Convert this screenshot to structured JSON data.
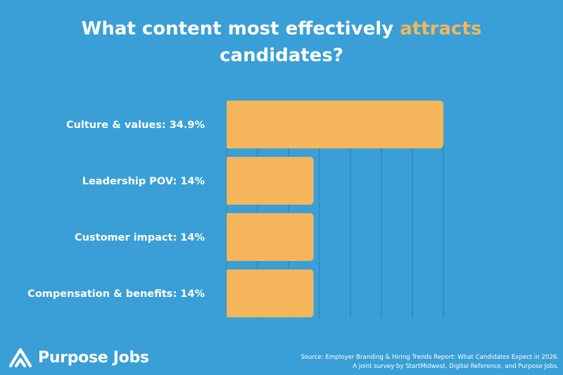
{
  "chart_data": {
    "type": "bar",
    "orientation": "horizontal",
    "title_prefix": "What content most effectively ",
    "title_highlight": "attracts",
    "title_suffix": "candidates?",
    "categories": [
      "Culture & values: 34.9%",
      "Leadership POV: 14%",
      "Customer impact: 14%",
      "Compensation & benefits: 14%"
    ],
    "values": [
      34.9,
      14,
      14,
      14
    ],
    "xlim": [
      0,
      35
    ],
    "grid": true,
    "bar_color": "#f5b55b",
    "grid_color": "#2a7fae"
  },
  "colors": {
    "background": "#3a9fd6",
    "highlight": "#f5b55b"
  },
  "brand": {
    "name": "Purpose Jobs",
    "icon": "mountain-logo-icon"
  },
  "source": {
    "line1": "Source: Employer Branding & Hiring Trends Report: What Candidates Expect in 2026.",
    "line2": "A joint survey by StartMidwest, Digital Reference, and Purpose Jobs."
  }
}
